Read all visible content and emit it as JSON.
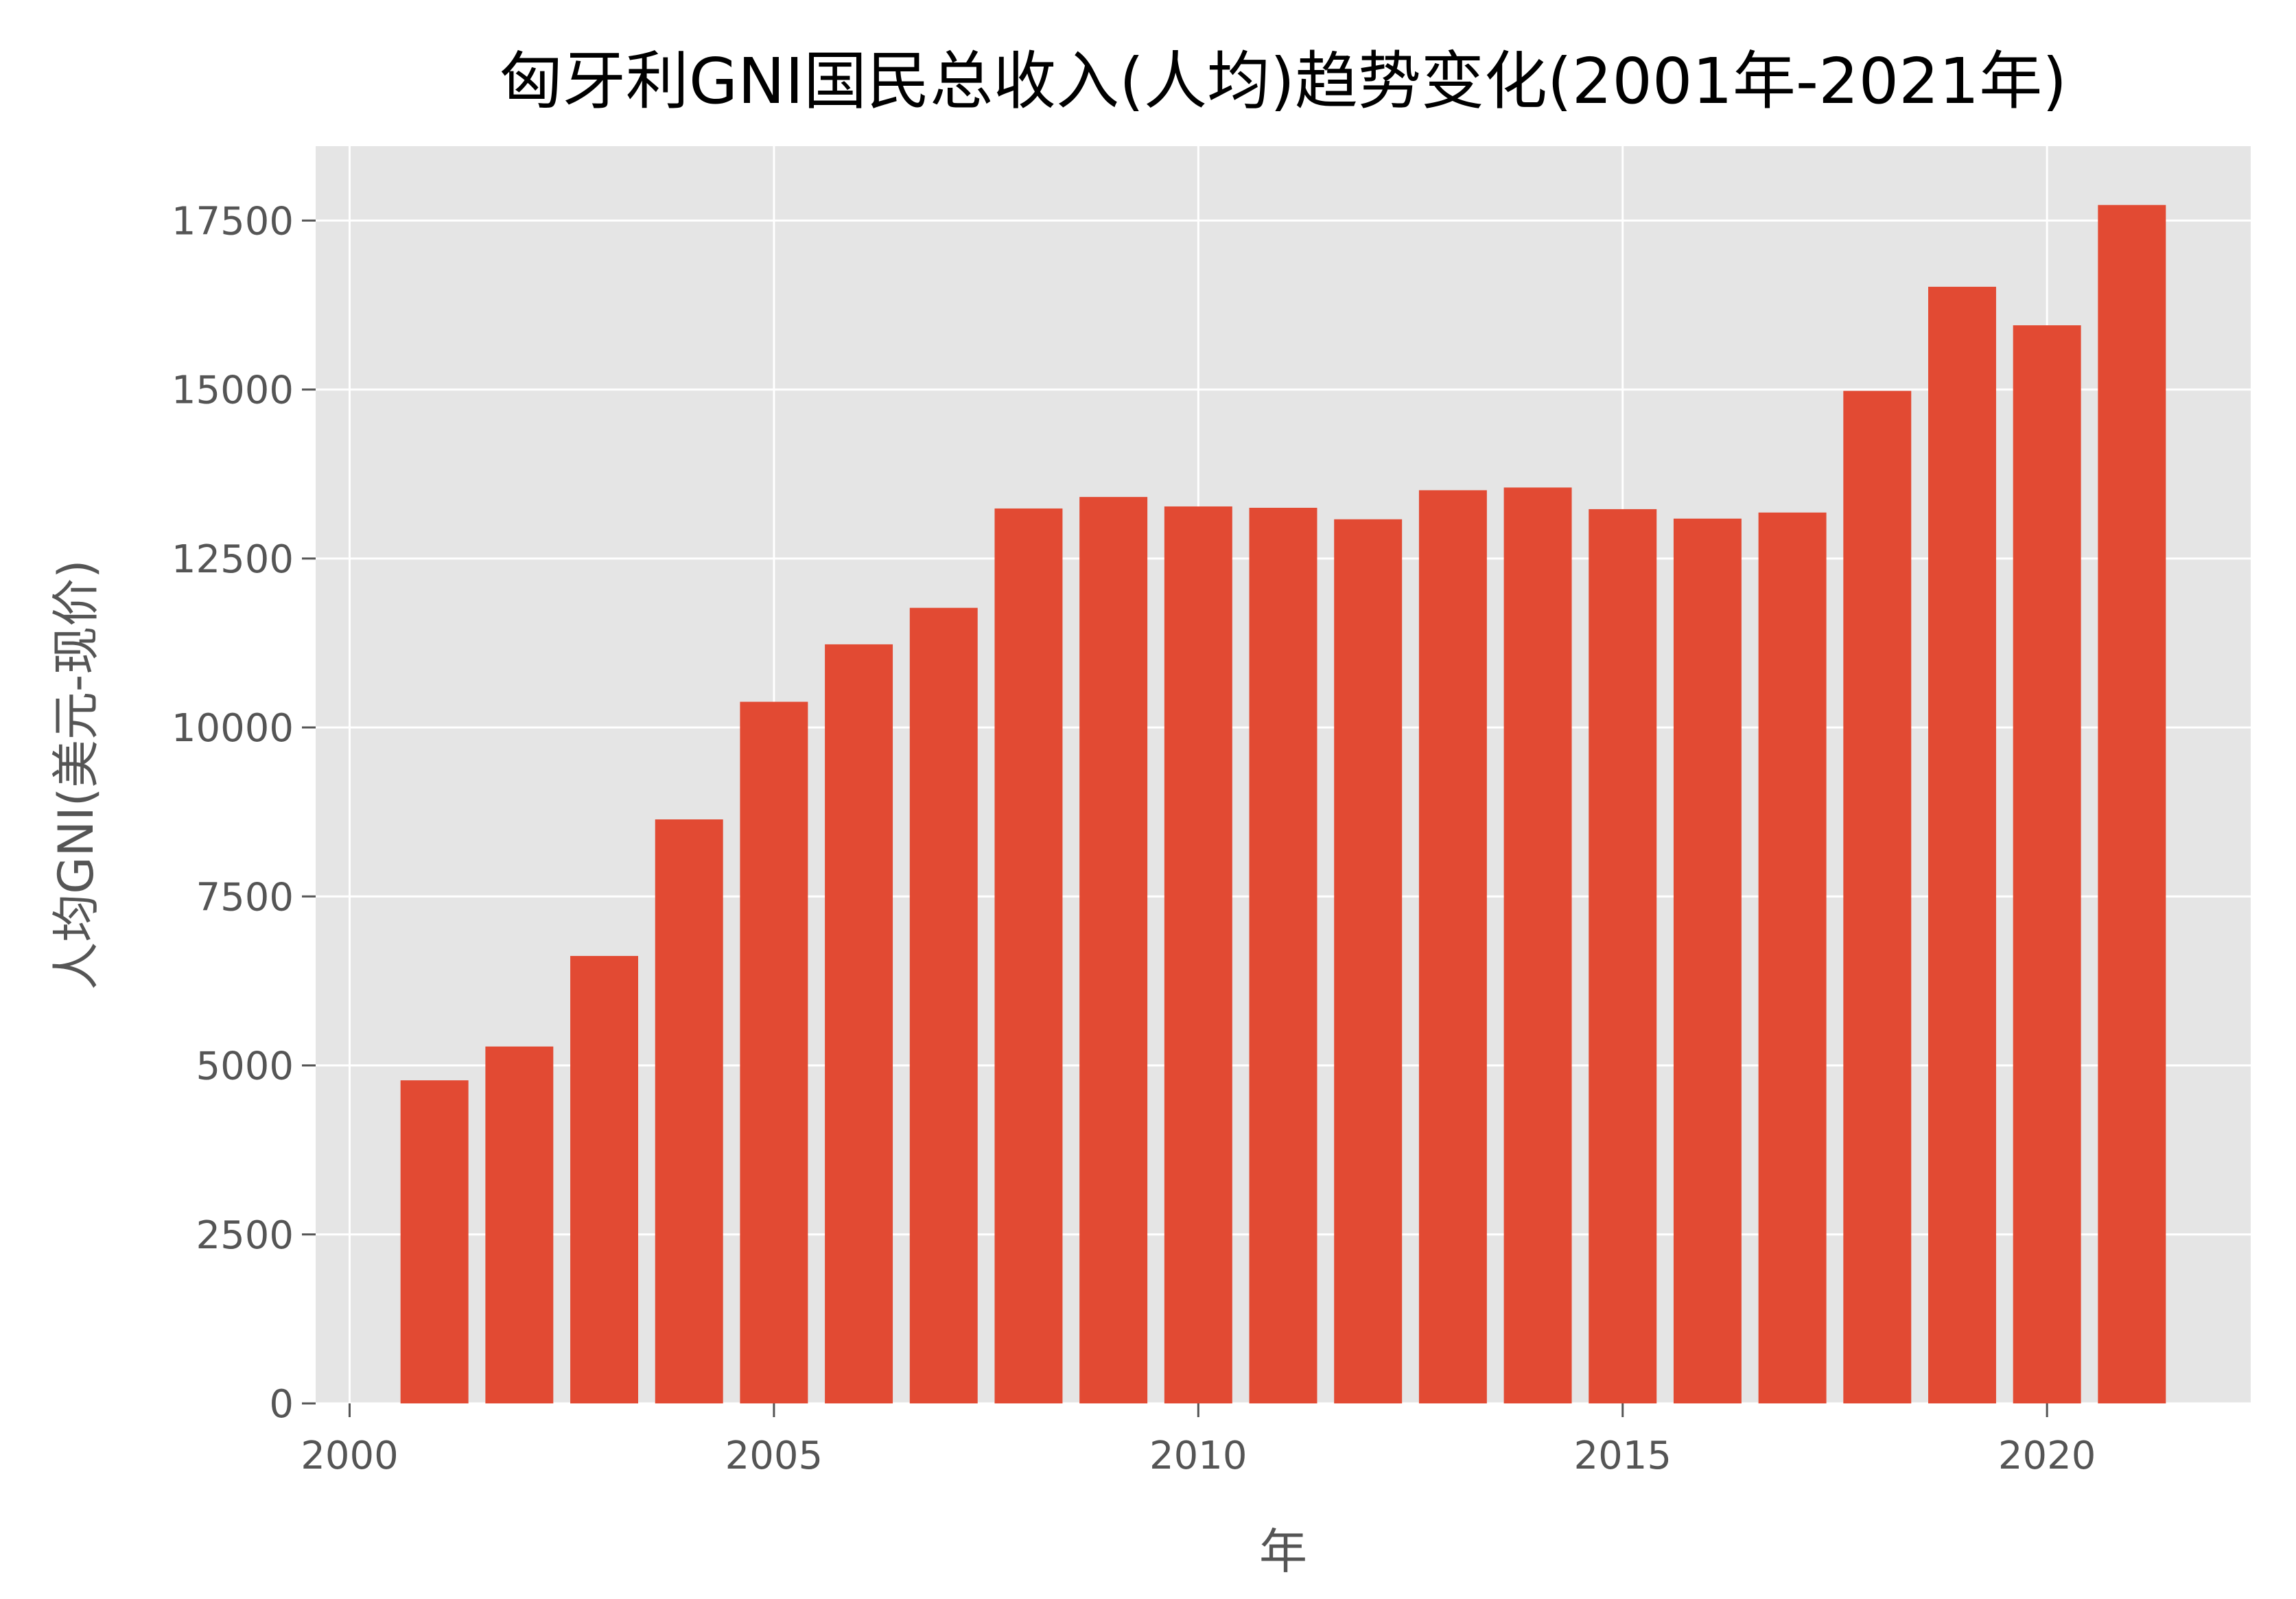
{
  "chart_data": {
    "type": "bar",
    "title": "匈牙利GNI国民总收入(人均)趋势变化(2001年-2021年)",
    "xlabel": "年",
    "ylabel": "人均GNI(美元-现价)",
    "x": [
      2001,
      2002,
      2003,
      2004,
      2005,
      2006,
      2007,
      2008,
      2009,
      2010,
      2011,
      2012,
      2013,
      2014,
      2015,
      2016,
      2017,
      2018,
      2019,
      2020,
      2021
    ],
    "values": [
      4780,
      5280,
      6620,
      8640,
      10380,
      11230,
      11770,
      13240,
      13410,
      13270,
      13250,
      13080,
      13510,
      13550,
      13230,
      13090,
      13180,
      14980,
      16520,
      15950,
      17730
    ],
    "xlim": [
      1999.6,
      2022.4
    ],
    "ylim": [
      0,
      18600
    ],
    "x_ticks": [
      2000,
      2005,
      2010,
      2015,
      2020
    ],
    "y_ticks": [
      0,
      2500,
      5000,
      7500,
      10000,
      12500,
      15000,
      17500
    ],
    "grid": true,
    "legend": "none",
    "colors": {
      "bar": "#E24A33",
      "plot_background": "#E5E5E5",
      "grid": "#FFFFFF",
      "text": "#555555",
      "title": "#000000"
    }
  }
}
